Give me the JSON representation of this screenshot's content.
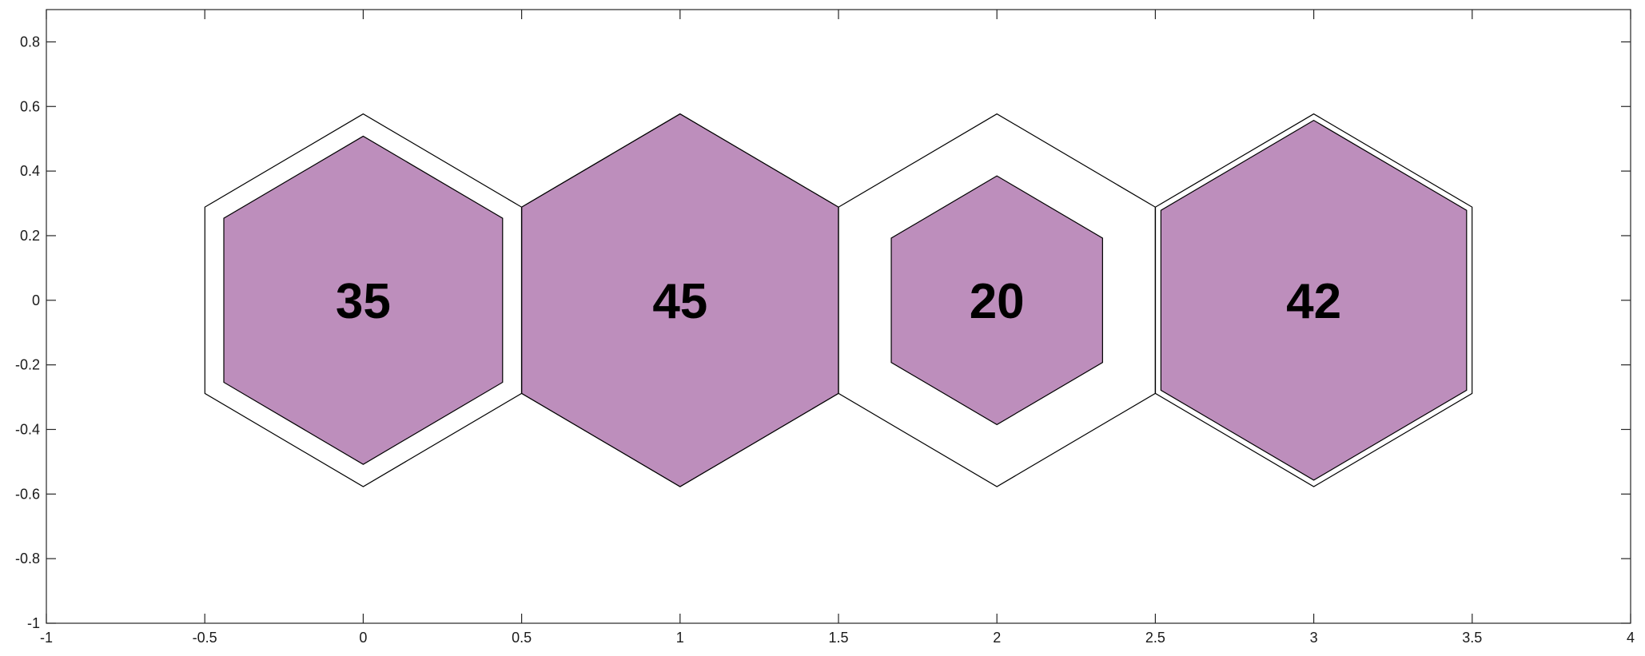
{
  "chart_data": {
    "type": "hexagon-proportion",
    "title": "",
    "xlabel": "",
    "ylabel": "",
    "xlim": [
      -1,
      4
    ],
    "ylim": [
      -1,
      0.9
    ],
    "xticks": [
      -1,
      -0.5,
      0,
      0.5,
      1,
      1.5,
      2,
      2.5,
      3,
      3.5,
      4
    ],
    "xtick_labels": [
      "-1",
      "-0.5",
      "0",
      "0.5",
      "1",
      "1.5",
      "2",
      "2.5",
      "3",
      "3.5",
      "4"
    ],
    "yticks": [
      -1,
      -0.8,
      -0.6,
      -0.4,
      -0.2,
      0,
      0.2,
      0.4,
      0.6,
      0.8
    ],
    "ytick_labels": [
      "-1",
      "-0.8",
      "-0.6",
      "-0.4",
      "-0.2",
      "0",
      "0.2",
      "0.4",
      "0.6",
      "0.8"
    ],
    "outer_hexagon_circumradius": 0.577,
    "max_value": 45,
    "fill_color": "#bd8ebc",
    "edge_color": "#000000",
    "grid": false,
    "hexagons": [
      {
        "x": 0,
        "y": 0,
        "value": 35,
        "label": "35",
        "inner_circumradius": 0.508
      },
      {
        "x": 1,
        "y": 0,
        "value": 45,
        "label": "45",
        "inner_circumradius": 0.577
      },
      {
        "x": 2,
        "y": 0,
        "value": 20,
        "label": "20",
        "inner_circumradius": 0.385
      },
      {
        "x": 3,
        "y": 0,
        "value": 42,
        "label": "42",
        "inner_circumradius": 0.557
      }
    ]
  }
}
